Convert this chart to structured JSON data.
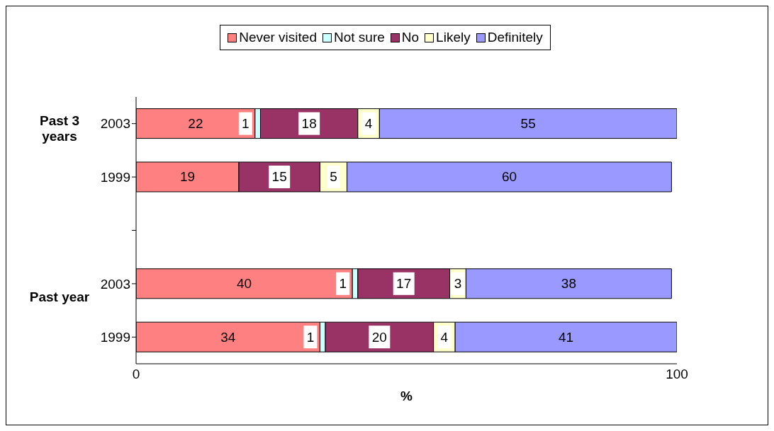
{
  "chart_data": {
    "type": "bar",
    "orientation": "horizontal",
    "stacked": true,
    "categories": [
      "2003",
      "1999",
      null,
      "2003",
      "1999"
    ],
    "series": [
      {
        "name": "Never visited",
        "color": "#ff8080",
        "values": [
          22,
          19,
          null,
          40,
          34
        ]
      },
      {
        "name": "Not sure",
        "color": "#ccffff",
        "values": [
          1,
          null,
          null,
          1,
          1
        ]
      },
      {
        "name": "No",
        "color": "#993366",
        "values": [
          18,
          15,
          null,
          17,
          20
        ]
      },
      {
        "name": "Likely",
        "color": "#ffffcc",
        "values": [
          4,
          5,
          null,
          3,
          4
        ]
      },
      {
        "name": "Definitely",
        "color": "#9999ff",
        "values": [
          55,
          60,
          null,
          38,
          41
        ]
      }
    ],
    "xlim": [
      0,
      100
    ],
    "xticks": [
      0,
      100
    ],
    "xlabel": "%",
    "data_labels": true,
    "legend": "top",
    "grid": false,
    "annotations": [
      "Past 3 years",
      "Past year"
    ]
  }
}
